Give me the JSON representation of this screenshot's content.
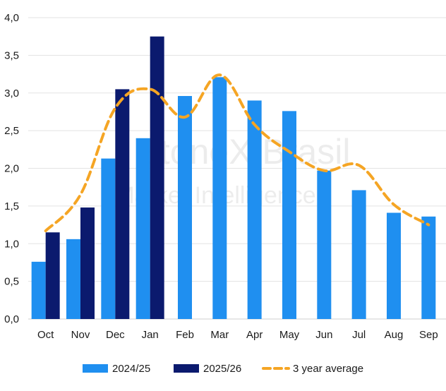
{
  "chart_data": {
    "type": "bar",
    "categories": [
      "Oct",
      "Nov",
      "Dec",
      "Jan",
      "Feb",
      "Mar",
      "Apr",
      "May",
      "Jun",
      "Jul",
      "Aug",
      "Sep"
    ],
    "series": [
      {
        "name": "2024/25",
        "type": "bar",
        "color": "#1f8ff0",
        "values": [
          0.76,
          1.06,
          2.13,
          2.4,
          2.96,
          3.21,
          2.9,
          2.76,
          1.97,
          1.71,
          1.41,
          1.36
        ]
      },
      {
        "name": "2025/26",
        "type": "bar",
        "color": "#0b1a6e",
        "values": [
          1.15,
          1.48,
          3.05,
          3.75,
          null,
          null,
          null,
          null,
          null,
          null,
          null,
          null
        ]
      },
      {
        "name": "3 year average",
        "type": "line",
        "style": "dashed",
        "color": "#f5a524",
        "values": [
          1.17,
          1.65,
          2.8,
          3.05,
          2.68,
          3.24,
          2.58,
          2.22,
          1.97,
          2.04,
          1.52,
          1.25
        ]
      }
    ],
    "title": "",
    "xlabel": "",
    "ylabel": "",
    "ylim": [
      0,
      4
    ],
    "yticks": [
      "0,0",
      "0,5",
      "1,0",
      "1,5",
      "2,0",
      "2,5",
      "3,0",
      "3,5",
      "4,0"
    ],
    "grid": "horizontal",
    "legend": "bottom-center",
    "watermark": "StoneX Brasil Market Intelligence"
  }
}
